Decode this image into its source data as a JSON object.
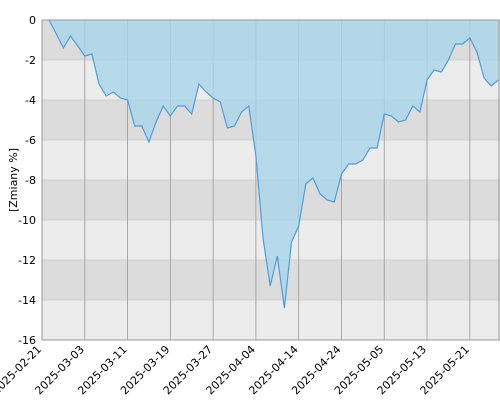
{
  "chart_data": {
    "type": "area",
    "y_label": "[Zmiany %]",
    "categories": [
      "2025-02-21",
      null,
      null,
      null,
      null,
      null,
      "2025-03-03",
      null,
      null,
      null,
      null,
      null,
      "2025-03-11",
      null,
      null,
      null,
      null,
      null,
      "2025-03-19",
      null,
      null,
      null,
      null,
      null,
      "2025-03-27",
      null,
      null,
      null,
      null,
      null,
      "2025-04-04",
      null,
      null,
      null,
      null,
      null,
      "2025-04-14",
      null,
      null,
      null,
      null,
      null,
      "2025-04-24",
      null,
      null,
      null,
      null,
      null,
      "2025-05-05",
      null,
      null,
      null,
      null,
      null,
      "2025-05-13",
      null,
      null,
      null,
      null,
      null,
      "2025-05-21",
      null,
      null,
      null,
      null
    ],
    "series": [
      {
        "color": "#4a9fe0",
        "fill": "#a9d6ea",
        "values": [
          null,
          0,
          -0.7,
          -1.4,
          -0.8,
          -1.3,
          -1.8,
          -1.7,
          -3.2,
          -3.8,
          -3.6,
          -3.9,
          -4.0,
          -5.3,
          -5.3,
          -6.1,
          -5.1,
          -4.3,
          -4.8,
          -4.3,
          -4.3,
          -4.7,
          -3.2,
          -3.6,
          -3.9,
          -4.1,
          -5.4,
          -5.3,
          -4.6,
          -4.3,
          -6.8,
          -10.9,
          -13.3,
          -11.8,
          -14.4,
          -11.1,
          -10.3,
          -8.2,
          -7.9,
          -8.7,
          -9.0,
          -9.1,
          -7.7,
          -7.2,
          -7.2,
          -7.0,
          -6.4,
          -6.4,
          -4.7,
          -4.8,
          -5.1,
          -5.0,
          -4.3,
          -4.6,
          -3.0,
          -2.5,
          -2.6,
          -2.0,
          -1.2,
          -1.2,
          -0.9,
          -1.6,
          -2.9,
          -3.3,
          -3.0
        ]
      }
    ],
    "ylim": [
      -16,
      0
    ],
    "yticks": [
      0,
      -2,
      -4,
      -6,
      -8,
      -10,
      -12,
      -14,
      -16
    ],
    "grid": true
  }
}
